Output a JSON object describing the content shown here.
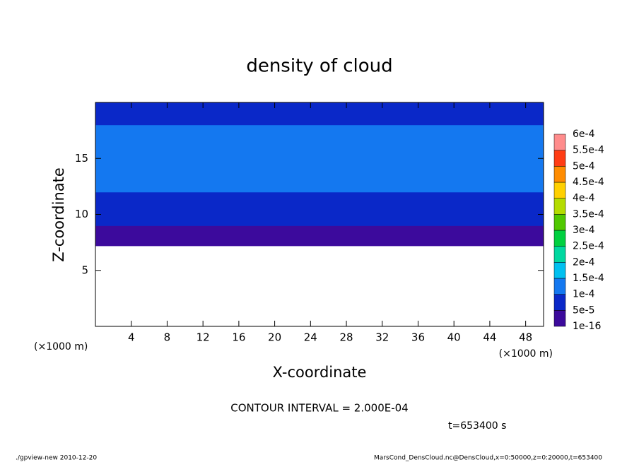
{
  "chart_data": {
    "type": "contour",
    "title": "density of cloud",
    "x_label": "X-coordinate",
    "y_label": "Z-coordinate",
    "x_unit": "(×1000 m)",
    "y_unit": "(×1000 m)",
    "xlim": [
      0,
      50
    ],
    "xticks": [
      4,
      8,
      12,
      16,
      20,
      24,
      28,
      32,
      36,
      40,
      44,
      48
    ],
    "ylim": [
      0,
      20
    ],
    "yticks": [
      5,
      10,
      15
    ],
    "z": [
      7.2,
      8,
      9,
      10,
      11,
      12,
      14,
      16,
      17,
      18,
      19,
      20
    ],
    "values": [
      3e-05,
      4e-05,
      6e-05,
      8e-05,
      9e-05,
      0.00012,
      0.00013,
      0.00013,
      0.00012,
      9e-05,
      8e-05,
      8e-05
    ],
    "levels": [
      1e-16,
      {
        "value": 5e-05,
        "label": "5e-5"
      },
      {
        "value": 0.0001,
        "label": "1e-4"
      },
      {
        "value": 0.00015,
        "label": "1.5e-4"
      },
      {
        "value": 0.0002,
        "label": "2e-4"
      },
      {
        "value": 0.00025,
        "label": "2.5e-4"
      },
      {
        "value": 0.0003,
        "label": "3e-4"
      },
      {
        "value": 0.00035,
        "label": "3.5e-4"
      },
      {
        "value": 0.0004,
        "label": "4e-4"
      },
      {
        "value": 0.00045,
        "label": "4.5e-4"
      },
      {
        "value": 0.0005,
        "label": "5e-4"
      },
      {
        "value": 0.00055,
        "label": "5.5e-4"
      },
      {
        "value": 0.0006,
        "label": "6e-4"
      }
    ],
    "colors": [
      "#3c0a9c",
      "#0a28c8",
      "#1478f0",
      "#00c0f0",
      "#00d8a0",
      "#00d040",
      "#50c800",
      "#b4dc00",
      "#ffd000",
      "#ff8c00",
      "#ff3c14",
      "#ff8c8c"
    ],
    "contour_interval": "CONTOUR INTERVAL = 2.000E-04",
    "time": "t=653400 s",
    "footer_left": "./gpview-new  2010-12-20",
    "footer_right": "MarsCond_DensCloud.nc@DensCloud,x=0:50000,z=0:20000,t=653400"
  }
}
